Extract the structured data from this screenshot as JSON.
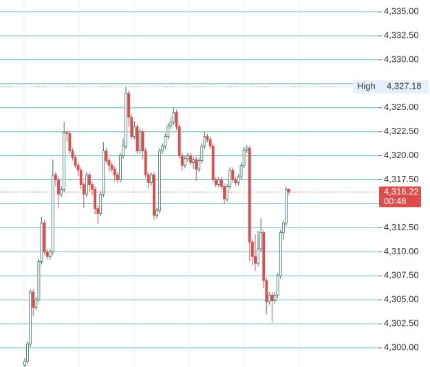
{
  "chart_data": {
    "type": "candlestick",
    "ylim": [
      4298.0,
      4336.22
    ],
    "yticks": [
      {
        "value": 4300,
        "label": "4,300.00"
      },
      {
        "value": 4302.5,
        "label": "4,302.50"
      },
      {
        "value": 4305,
        "label": "4,305.00"
      },
      {
        "value": 4307.5,
        "label": "4,307.50"
      },
      {
        "value": 4310,
        "label": "4,310.00"
      },
      {
        "value": 4312.5,
        "label": "4,312.50"
      },
      {
        "value": 4315,
        "label": "4,315.00"
      },
      {
        "value": 4317.5,
        "label": "4,317.50"
      },
      {
        "value": 4320,
        "label": "4,320.00"
      },
      {
        "value": 4322.5,
        "label": "4,322.50"
      },
      {
        "value": 4325,
        "label": "4,325.00"
      },
      {
        "value": 4327.5,
        "label": "4,327.50"
      },
      {
        "value": 4330,
        "label": "4,330.00"
      },
      {
        "value": 4332.5,
        "label": "4,332.50"
      },
      {
        "value": 4335,
        "label": "4,335.00"
      }
    ],
    "grid": true,
    "grid_color": "#62b8b8",
    "up_color": "#2f6f63",
    "down_color": "#e04b4b",
    "open": [
      4298.2,
      4298.6,
      4300.4,
      4305.8,
      4304.2,
      4305.0,
      4309.0,
      4313.0,
      4310.0,
      4309.5,
      4310.0,
      4318.0,
      4317.5,
      4316.0,
      4316.5,
      4322.4,
      4322.3,
      4320.5,
      4319.8,
      4319.0,
      4318.5,
      4317.0,
      4316.0,
      4318.0,
      4317.0,
      4316.5,
      4314.5,
      4314.0,
      4316.0,
      4320.5,
      4319.5,
      4319.0,
      4318.6,
      4318.0,
      4317.5,
      4320.0,
      4321.0,
      4326.5,
      4324.0,
      4322.0,
      4323.0,
      4320.5,
      4322.5,
      4320.5,
      4318.0,
      4317.2,
      4318.0,
      4313.8,
      4314.3,
      4320.5,
      4321.0,
      4322.0,
      4323.1,
      4323.5,
      4324.5,
      4323.0,
      4320.0,
      4319.0,
      4319.7,
      4320.0,
      4319.3,
      4319.6,
      4318.6,
      4319.5,
      4321.0,
      4322.0,
      4321.7,
      4321.0,
      4317.5,
      4317.0,
      4317.5,
      4316.8,
      4315.5,
      4316.8,
      4318.5,
      4317.5,
      4317.2,
      4317.8,
      4319.0,
      4320.6,
      4320.8,
      4311.0,
      4309.5,
      4308.8,
      4310.3,
      4312.0,
      4307.0,
      4304.8,
      4305.5,
      4304.9,
      4305.5,
      4307.5,
      4312.0,
      4313.0,
      4316.5
    ],
    "high": [
      4298.9,
      4300.7,
      4306.1,
      4306.1,
      4305.3,
      4309.3,
      4313.6,
      4313.3,
      4310.3,
      4310.3,
      4319.6,
      4318.3,
      4317.8,
      4316.8,
      4323.5,
      4322.7,
      4322.6,
      4320.8,
      4320.1,
      4319.3,
      4318.8,
      4317.3,
      4318.3,
      4318.3,
      4317.3,
      4316.8,
      4314.8,
      4316.3,
      4321.4,
      4320.8,
      4319.8,
      4319.3,
      4318.9,
      4318.3,
      4320.3,
      4321.8,
      4327.18,
      4326.8,
      4324.3,
      4323.6,
      4323.3,
      4322.8,
      4322.8,
      4320.8,
      4318.3,
      4318.3,
      4318.3,
      4314.6,
      4320.8,
      4321.3,
      4322.3,
      4323.4,
      4324.0,
      4325.0,
      4324.8,
      4323.3,
      4320.3,
      4320.0,
      4320.3,
      4320.3,
      4319.9,
      4319.9,
      4319.8,
      4321.3,
      4322.5,
      4322.3,
      4322.0,
      4321.3,
      4317.8,
      4317.8,
      4317.8,
      4317.1,
      4317.1,
      4318.8,
      4318.8,
      4317.8,
      4318.1,
      4319.3,
      4320.9,
      4321.1,
      4321.0,
      4311.3,
      4311.8,
      4312.2,
      4313.5,
      4312.3,
      4307.3,
      4305.8,
      4305.8,
      4305.8,
      4307.8,
      4312.3,
      4313.3,
      4316.8,
      4316.6
    ],
    "low": [
      4298.0,
      4298.3,
      4300.1,
      4303.3,
      4303.9,
      4304.7,
      4308.7,
      4309.7,
      4309.2,
      4309.2,
      4309.7,
      4316.8,
      4314.5,
      4315.7,
      4316.2,
      4321.5,
      4320.2,
      4319.5,
      4318.7,
      4317.9,
      4316.5,
      4314.6,
      4315.7,
      4316.2,
      4315.9,
      4313.9,
      4312.9,
      4313.7,
      4315.7,
      4319.2,
      4318.3,
      4318.3,
      4317.3,
      4317.2,
      4317.2,
      4319.7,
      4320.7,
      4323.0,
      4321.7,
      4321.7,
      4320.2,
      4320.2,
      4319.6,
      4317.7,
      4316.6,
      4316.9,
      4313.3,
      4313.5,
      4314.0,
      4320.2,
      4320.7,
      4321.7,
      4322.8,
      4323.2,
      4322.7,
      4319.7,
      4318.4,
      4318.7,
      4319.4,
      4319.0,
      4318.6,
      4317.4,
      4318.3,
      4319.2,
      4320.7,
      4321.4,
      4320.7,
      4317.2,
      4316.7,
      4316.7,
      4316.5,
      4315.0,
      4315.2,
      4316.5,
      4317.2,
      4316.9,
      4316.9,
      4317.5,
      4318.7,
      4320.3,
      4309.0,
      4308.6,
      4308.0,
      4308.5,
      4310.0,
      4306.2,
      4303.5,
      4304.5,
      4302.7,
      4304.6,
      4305.2,
      4307.2,
      4311.2,
      4312.7,
      4315.9
    ],
    "close": [
      4298.6,
      4300.4,
      4305.8,
      4304.2,
      4305.0,
      4309.0,
      4313.0,
      4310.0,
      4309.5,
      4310.0,
      4318.0,
      4317.5,
      4316.0,
      4316.5,
      4322.4,
      4322.3,
      4320.5,
      4319.8,
      4319.0,
      4318.5,
      4317.0,
      4316.0,
      4318.0,
      4317.0,
      4316.5,
      4314.5,
      4314.0,
      4316.0,
      4320.5,
      4319.5,
      4319.0,
      4318.6,
      4318.0,
      4317.5,
      4320.0,
      4321.0,
      4326.5,
      4324.0,
      4322.0,
      4323.0,
      4320.5,
      4322.5,
      4320.5,
      4318.0,
      4317.2,
      4318.0,
      4313.8,
      4314.3,
      4320.5,
      4321.0,
      4322.0,
      4323.1,
      4323.5,
      4324.5,
      4323.0,
      4320.0,
      4319.0,
      4319.7,
      4320.0,
      4319.3,
      4319.6,
      4318.6,
      4319.5,
      4321.0,
      4322.0,
      4321.7,
      4321.0,
      4317.5,
      4317.0,
      4317.5,
      4316.8,
      4315.5,
      4316.8,
      4318.5,
      4317.5,
      4317.2,
      4317.8,
      4319.0,
      4320.6,
      4320.8,
      4311.0,
      4309.5,
      4308.8,
      4310.3,
      4312.0,
      4307.0,
      4304.8,
      4305.5,
      4304.9,
      4305.5,
      4307.5,
      4312.0,
      4313.0,
      4316.5,
      4316.22
    ],
    "high_line": {
      "name": "High",
      "value": 4327.18,
      "label": "4,327.18"
    },
    "last_price": {
      "value": 4316.22,
      "label": "4,316.22",
      "countdown": "00:48",
      "color": "#e04b4b"
    }
  }
}
